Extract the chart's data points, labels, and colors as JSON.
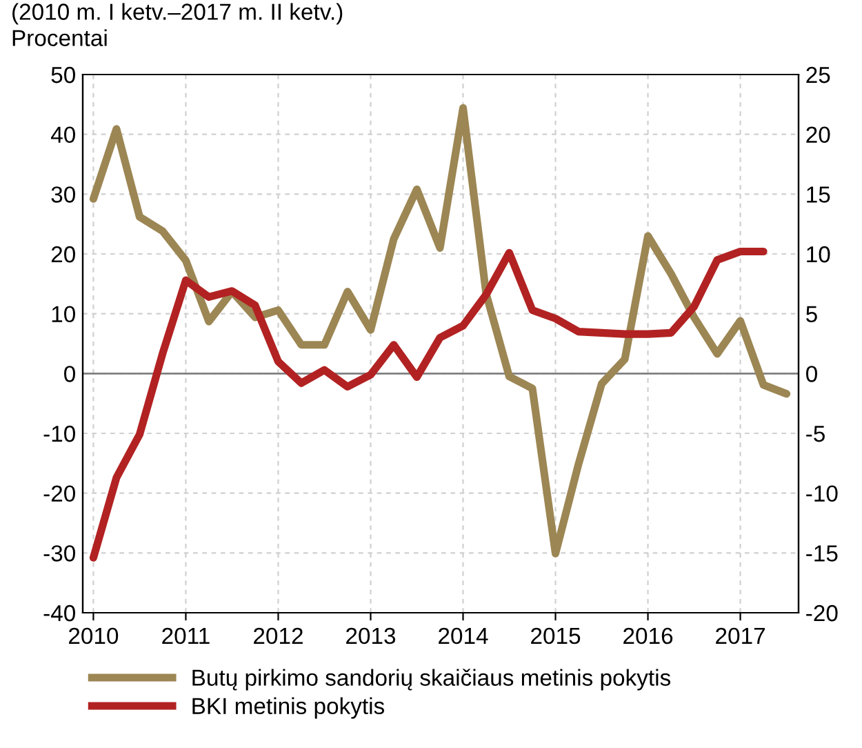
{
  "chart_data": {
    "type": "line",
    "subtitle": "(2010 m. I ketv.–2017 m. II ketv.)",
    "ylabel": "Procentai",
    "xlim": [
      2009.885,
      2017.63
    ],
    "xticks": [
      2010,
      2011,
      2012,
      2013,
      2014,
      2015,
      2016,
      2017
    ],
    "ylim": [
      -40,
      50
    ],
    "yticks": [
      -40,
      -30,
      -20,
      -10,
      0,
      10,
      20,
      30,
      40,
      50
    ],
    "y2lim": [
      -20,
      25
    ],
    "y2ticks": [
      -20,
      -15,
      -10,
      -5,
      0,
      5,
      10,
      15,
      20,
      25
    ],
    "ref_lines": [
      {
        "axis": "y",
        "value": 0,
        "color": "#808080"
      }
    ],
    "grid": true,
    "legend": "bottom",
    "series": [
      {
        "name": "Butų pirkimo sandorių skaičiaus metinis pokytis",
        "color": "#9c8653",
        "x": [
          2010,
          2010.25,
          2010.5,
          2010.75,
          2011,
          2011.25,
          2011.5,
          2011.75,
          2012,
          2012.25,
          2012.5,
          2012.75,
          2013,
          2013.25,
          2013.5,
          2013.75,
          2014,
          2014.25,
          2014.5,
          2014.75,
          2015,
          2015.25,
          2015.5,
          2015.75,
          2016,
          2016.25,
          2016.5,
          2016.75,
          2017,
          2017.25,
          2017.5
        ],
        "values": [
          29.2,
          40.9,
          26.2,
          23.8,
          18.9,
          8.7,
          13.7,
          9.4,
          10.6,
          4.8,
          4.8,
          13.7,
          7.3,
          22.5,
          30.8,
          21.0,
          44.4,
          13.3,
          -0.5,
          -2.5,
          -30.1,
          -15.1,
          -1.7,
          2.4,
          23.0,
          16.7,
          9.4,
          3.3,
          8.8,
          -1.9,
          -3.4
        ]
      },
      {
        "name": "BKI metinis pokytis",
        "color": "#b22222",
        "axis": "y2",
        "x": [
          2010,
          2010.25,
          2010.5,
          2010.75,
          2011,
          2011.25,
          2011.5,
          2011.75,
          2012,
          2012.25,
          2012.5,
          2012.75,
          2013,
          2013.25,
          2013.5,
          2013.75,
          2014,
          2014.25,
          2014.5,
          2014.75,
          2015,
          2015.25,
          2015.5,
          2015.75,
          2016,
          2016.25,
          2016.5,
          2016.75,
          2017,
          2017.25
        ],
        "values": [
          -15.4,
          -8.7,
          -5.1,
          1.7,
          7.8,
          6.4,
          6.9,
          5.7,
          1.0,
          -0.8,
          0.3,
          -1.1,
          -0.1,
          2.4,
          -0.3,
          3.0,
          4.0,
          6.6,
          10.1,
          5.3,
          4.6,
          3.5,
          3.4,
          3.3,
          3.3,
          3.4,
          5.6,
          9.5,
          10.2,
          10.2
        ]
      }
    ]
  }
}
